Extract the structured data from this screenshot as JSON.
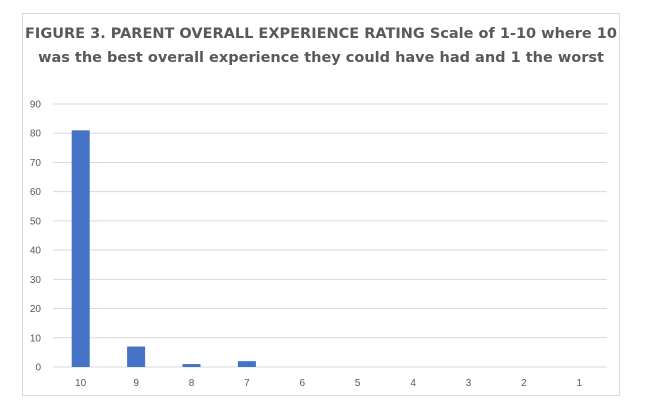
{
  "chart_data": {
    "type": "bar",
    "title": "FIGURE 3. PARENT OVERALL EXPERIENCE RATING Scale of 1-10 where 10 was the best overall experience they could have had and 1 the worst",
    "xlabel": "",
    "ylabel": "",
    "categories": [
      "10",
      "9",
      "8",
      "7",
      "6",
      "5",
      "4",
      "3",
      "2",
      "1"
    ],
    "values": [
      81,
      7,
      1,
      2,
      0,
      0,
      0,
      0,
      0,
      0
    ],
    "ylim": [
      0,
      90
    ],
    "yticks": [
      0,
      10,
      20,
      30,
      40,
      50,
      60,
      70,
      80,
      90
    ],
    "grid": true,
    "legend": "none",
    "bar_color": "#4472c4",
    "grid_color": "#d9d9d9",
    "text_color": "#595959"
  }
}
